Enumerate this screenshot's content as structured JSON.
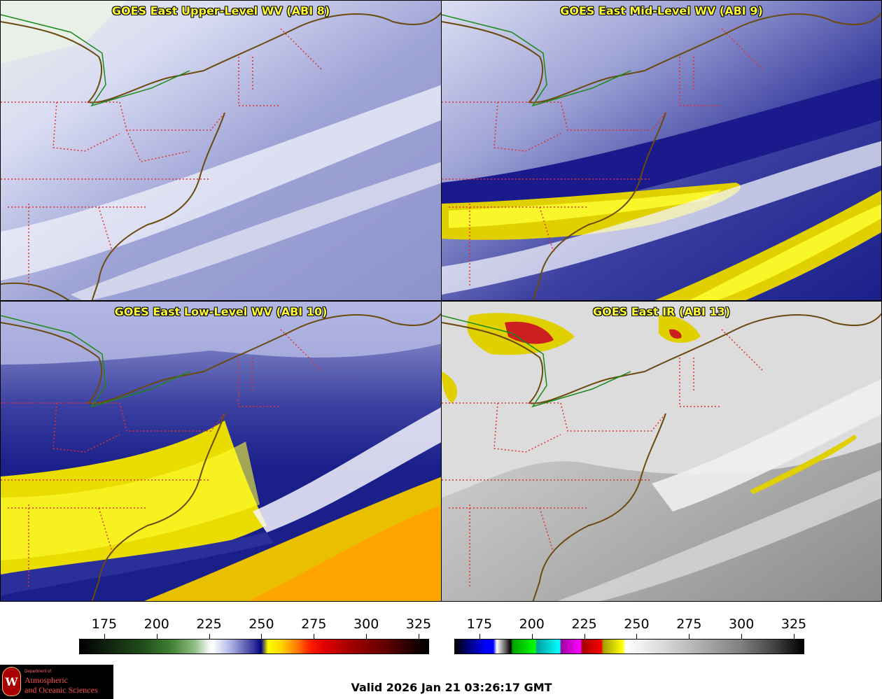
{
  "panels": [
    {
      "title": "GOES East Upper-Level WV (ABI 8)",
      "product": "upper-level water vapor"
    },
    {
      "title": "GOES East Mid-Level WV (ABI 9)",
      "product": "mid-level water vapor"
    },
    {
      "title": "GOES East Low-Level WV (ABI 10)",
      "product": "low-level water vapor"
    },
    {
      "title": "GOES East IR (ABI 13)",
      "product": "infrared"
    }
  ],
  "colorbars": {
    "wv": {
      "ticks": [
        "175",
        "200",
        "225",
        "250",
        "275",
        "300",
        "325"
      ],
      "min": 163,
      "max": 330
    },
    "ir": {
      "ticks": [
        "175",
        "200",
        "225",
        "250",
        "275",
        "300",
        "325"
      ],
      "min": 163,
      "max": 330
    }
  },
  "logo": {
    "department": "Department of",
    "line1": "Atmospheric",
    "line2": "and Oceanic Sciences"
  },
  "valid_time": "Valid 2026 Jan 21 03:26:17 GMT"
}
